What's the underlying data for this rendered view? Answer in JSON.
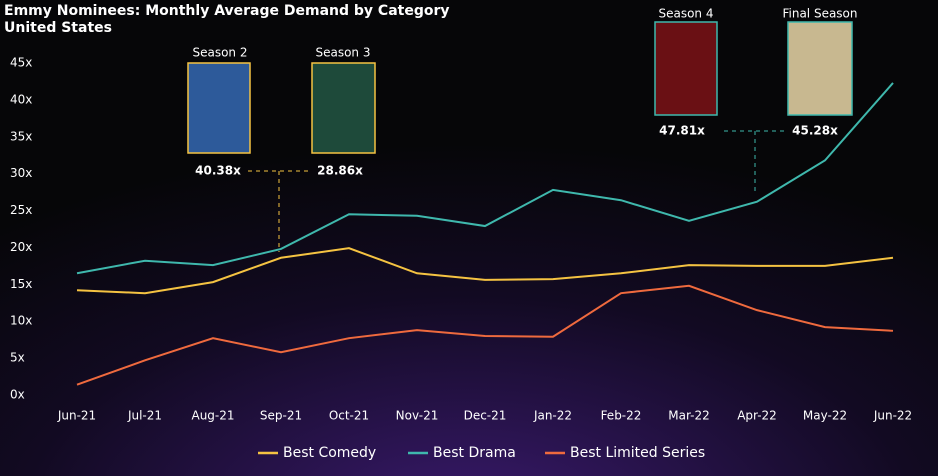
{
  "chart_data": {
    "type": "line",
    "title": "Emmy Nominees: Monthly Average Demand by Category",
    "subtitle": "United States",
    "categories": [
      "Jun-21",
      "Jul-21",
      "Aug-21",
      "Sep-21",
      "Oct-21",
      "Nov-21",
      "Dec-21",
      "Jan-22",
      "Feb-22",
      "Mar-22",
      "Apr-22",
      "May-22",
      "Jun-22"
    ],
    "series": [
      {
        "name": "Best Comedy",
        "color": "#f5c342",
        "values": [
          14.2,
          13.8,
          15.3,
          18.6,
          19.9,
          16.5,
          15.6,
          15.7,
          16.5,
          17.6,
          17.5,
          17.5,
          18.6
        ]
      },
      {
        "name": "Best Drama",
        "color": "#3fb8ad",
        "values": [
          16.5,
          18.2,
          17.6,
          19.8,
          24.5,
          24.3,
          22.9,
          27.8,
          26.4,
          23.6,
          26.2,
          31.8,
          42.3
        ]
      },
      {
        "name": "Best Limited Series",
        "color": "#ef6a3e",
        "values": [
          1.4,
          4.7,
          7.7,
          5.8,
          7.7,
          8.8,
          8.0,
          7.9,
          13.8,
          14.8,
          11.5,
          9.2,
          8.7
        ]
      }
    ],
    "ylim": [
      0,
      45
    ],
    "yticks": [
      {
        "value": 0,
        "label": "0x"
      },
      {
        "value": 5,
        "label": "5x"
      },
      {
        "value": 10,
        "label": "10x"
      },
      {
        "value": 15,
        "label": "15x"
      },
      {
        "value": 20,
        "label": "20x"
      },
      {
        "value": 25,
        "label": "25x"
      },
      {
        "value": 30,
        "label": "30x"
      },
      {
        "value": 35,
        "label": "35x"
      },
      {
        "value": 40,
        "label": "40x"
      },
      {
        "value": 45,
        "label": "45x"
      }
    ],
    "grid": false,
    "legend": "bottom",
    "annotations": [
      {
        "label": "Season 2",
        "value_label": "40.38x",
        "color": "#f5c342"
      },
      {
        "label": "Season 3",
        "value_label": "28.86x",
        "color": "#f5c342"
      },
      {
        "label": "Season 4",
        "value_label": "47.81x",
        "color": "#3fb8ad"
      },
      {
        "label": "Final Season",
        "value_label": "45.28x",
        "color": "#3fb8ad"
      }
    ]
  }
}
